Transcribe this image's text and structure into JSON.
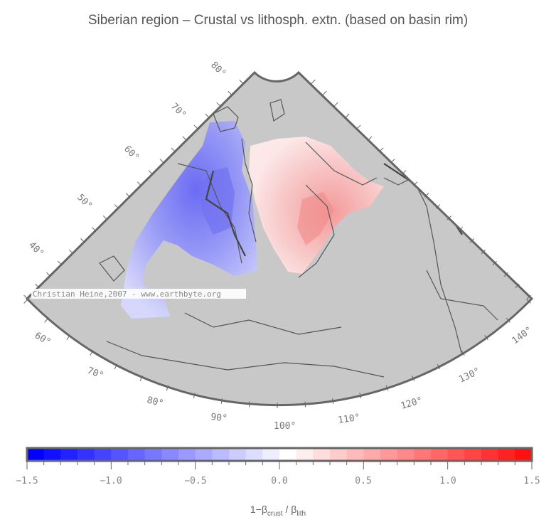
{
  "title": "Siberian region – Crustal vs lithosph. extn. (based on basin rim)",
  "watermark": "Christian Heine,2007 - www.earthbyte.org",
  "map": {
    "projection": "conic sector",
    "background_color": "#c8c8c8",
    "latitude_labels": [
      "40°",
      "50°",
      "60°",
      "70°",
      "80°"
    ],
    "longitude_labels": [
      "60°",
      "70°",
      "80°",
      "90°",
      "100°",
      "110°",
      "120°",
      "130°",
      "140°"
    ]
  },
  "colorbar": {
    "min": -1.5,
    "max": 1.5,
    "step": 0.1,
    "low_color": "#0000ff",
    "mid_color": "#ffffff",
    "high_color": "#ff0000",
    "tick_labels": [
      "−1.5",
      "−1.0",
      "−0.5",
      "0.0",
      "0.5",
      "1.0",
      "1.5"
    ],
    "label_main": "1−β",
    "label_sub1": "crust",
    "label_mid": " / β",
    "label_sub2": "lith"
  }
}
